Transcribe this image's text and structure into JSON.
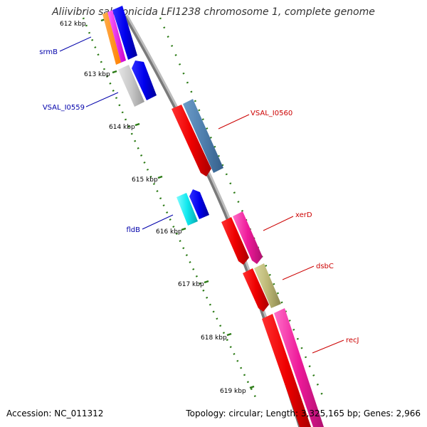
{
  "title": "Aliivibrio salmonicida LFI1238 chromosome 1, complete genome",
  "footer": {
    "accession": "Accession: NC_011312",
    "summary": "Topology: circular; Length: 3,325,165 bp; Genes: 2,966"
  },
  "colors": {
    "backbone": "#888888",
    "tick": "#2a7a14",
    "label_forward": "#cc0000",
    "label_reverse": "#0000aa",
    "kbp_text": "#000000"
  },
  "kbp_ticks": [
    "612 kbp",
    "613 kbp",
    "614 kbp",
    "615 kbp",
    "616 kbp",
    "617 kbp",
    "618 kbp",
    "619 kbp"
  ],
  "gene_labels": [
    {
      "name": "srmB",
      "strand": "reverse"
    },
    {
      "name": "VSAL_I0559",
      "strand": "reverse"
    },
    {
      "name": "fldB",
      "strand": "reverse"
    },
    {
      "name": "VSAL_I0560",
      "strand": "forward"
    },
    {
      "name": "xerD",
      "strand": "forward"
    },
    {
      "name": "dsbC",
      "strand": "forward"
    },
    {
      "name": "recJ",
      "strand": "forward"
    }
  ]
}
